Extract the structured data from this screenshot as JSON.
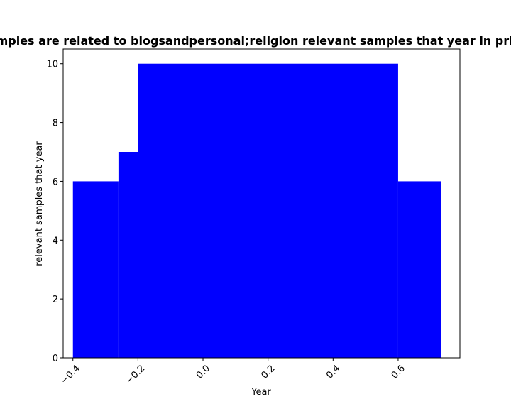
{
  "chart_data": {
    "type": "bar",
    "title": "Samples are related to blogsandpersonal;religion relevant samples that year in privacy",
    "xlabel": "Year",
    "ylabel": "relevant samples that year",
    "xlim": [
      -0.43,
      0.79
    ],
    "ylim": [
      0,
      10.5
    ],
    "x_ticks": [
      -0.4,
      -0.2,
      0.0,
      0.2,
      0.4,
      0.6
    ],
    "x_tick_labels": [
      "−0.4",
      "−0.2",
      "0.0",
      "0.2",
      "0.4",
      "0.6"
    ],
    "y_ticks": [
      0,
      2,
      4,
      6,
      8,
      10
    ],
    "y_tick_labels": [
      "0",
      "2",
      "4",
      "6",
      "8",
      "10"
    ],
    "bars": [
      {
        "x0": -0.4,
        "x1": -0.26,
        "value": 6
      },
      {
        "x0": -0.26,
        "x1": -0.2,
        "value": 7
      },
      {
        "x0": -0.2,
        "x1": 0.6,
        "value": 10
      },
      {
        "x0": 0.6,
        "x1": 0.733,
        "value": 6
      }
    ],
    "bar_color": "#0000ff",
    "grid": false,
    "legend": "none"
  }
}
